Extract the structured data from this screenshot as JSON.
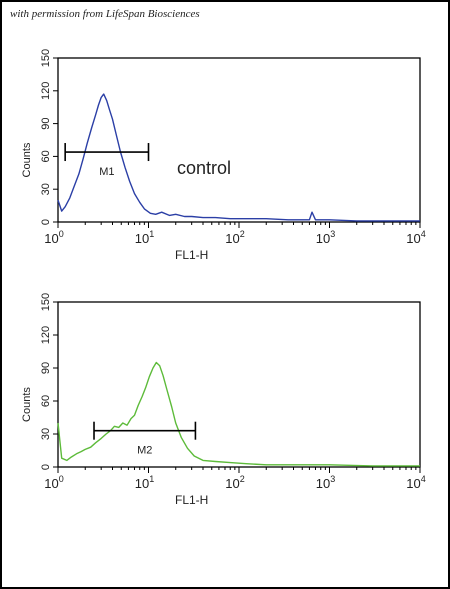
{
  "credit": "with permission from LifeSpan Biosciences",
  "chart_data": [
    {
      "type": "line",
      "xscale": "log",
      "xlim": [
        1,
        10000
      ],
      "ylim": [
        0,
        150
      ],
      "xlabel": "FL1-H",
      "ylabel": "Counts",
      "yticks": [
        0,
        30,
        60,
        90,
        120,
        150
      ],
      "xticks": [
        {
          "base": "10",
          "exp": "0"
        },
        {
          "base": "10",
          "exp": "1"
        },
        {
          "base": "10",
          "exp": "2"
        },
        {
          "base": "10",
          "exp": "3"
        },
        {
          "base": "10",
          "exp": "4"
        }
      ],
      "line_color": "#2b3fa6",
      "annotation": "control",
      "marker": {
        "label": "M1",
        "x_start": 1.2,
        "x_end": 10,
        "y": 64
      },
      "series": [
        {
          "x": [
            1.0,
            1.1,
            1.2,
            1.35,
            1.5,
            1.7,
            1.9,
            2.1,
            2.35,
            2.6,
            2.8,
            3.0,
            3.2,
            3.45,
            3.7,
            4.0,
            4.4,
            4.9,
            5.5,
            6.2,
            7.0,
            8.0,
            9.0,
            10.5,
            12,
            14,
            17,
            20,
            25,
            30,
            40,
            55,
            80,
            120,
            200,
            350,
            600,
            640,
            700,
            1000,
            2000,
            5000,
            10000
          ],
          "y": [
            20,
            10,
            14,
            22,
            32,
            44,
            58,
            72,
            86,
            98,
            107,
            114,
            117,
            111,
            103,
            94,
            80,
            64,
            50,
            37,
            26,
            18,
            12,
            8,
            7,
            9,
            6,
            7,
            5,
            5,
            4,
            4,
            3,
            3,
            3,
            2,
            2,
            9,
            2,
            2,
            1,
            1,
            1
          ]
        }
      ]
    },
    {
      "type": "line",
      "xscale": "log",
      "xlim": [
        1,
        10000
      ],
      "ylim": [
        0,
        150
      ],
      "xlabel": "FL1-H",
      "ylabel": "Counts",
      "yticks": [
        0,
        30,
        60,
        90,
        120,
        150
      ],
      "xticks": [
        {
          "base": "10",
          "exp": "0"
        },
        {
          "base": "10",
          "exp": "1"
        },
        {
          "base": "10",
          "exp": "2"
        },
        {
          "base": "10",
          "exp": "3"
        },
        {
          "base": "10",
          "exp": "4"
        }
      ],
      "line_color": "#5dbb3a",
      "annotation": "",
      "marker": {
        "label": "M2",
        "x_start": 2.5,
        "x_end": 33,
        "y": 33
      },
      "series": [
        {
          "x": [
            1.0,
            1.1,
            1.25,
            1.4,
            1.6,
            1.8,
            2.0,
            2.3,
            2.6,
            3.0,
            3.4,
            3.8,
            4.2,
            4.7,
            5.2,
            5.8,
            6.4,
            7.0,
            7.7,
            8.5,
            9.3,
            10.2,
            11.2,
            12.2,
            13.3,
            14.5,
            16,
            18,
            20,
            23,
            27,
            32,
            40,
            55,
            80,
            120,
            200,
            400,
            1000,
            3000,
            10000
          ],
          "y": [
            40,
            8,
            6,
            9,
            12,
            14,
            16,
            18,
            22,
            26,
            30,
            33,
            37,
            36,
            40,
            38,
            44,
            47,
            56,
            64,
            72,
            82,
            90,
            95,
            92,
            83,
            70,
            55,
            40,
            27,
            17,
            10,
            6,
            5,
            4,
            3,
            2,
            2,
            2,
            1,
            1
          ]
        }
      ]
    }
  ]
}
